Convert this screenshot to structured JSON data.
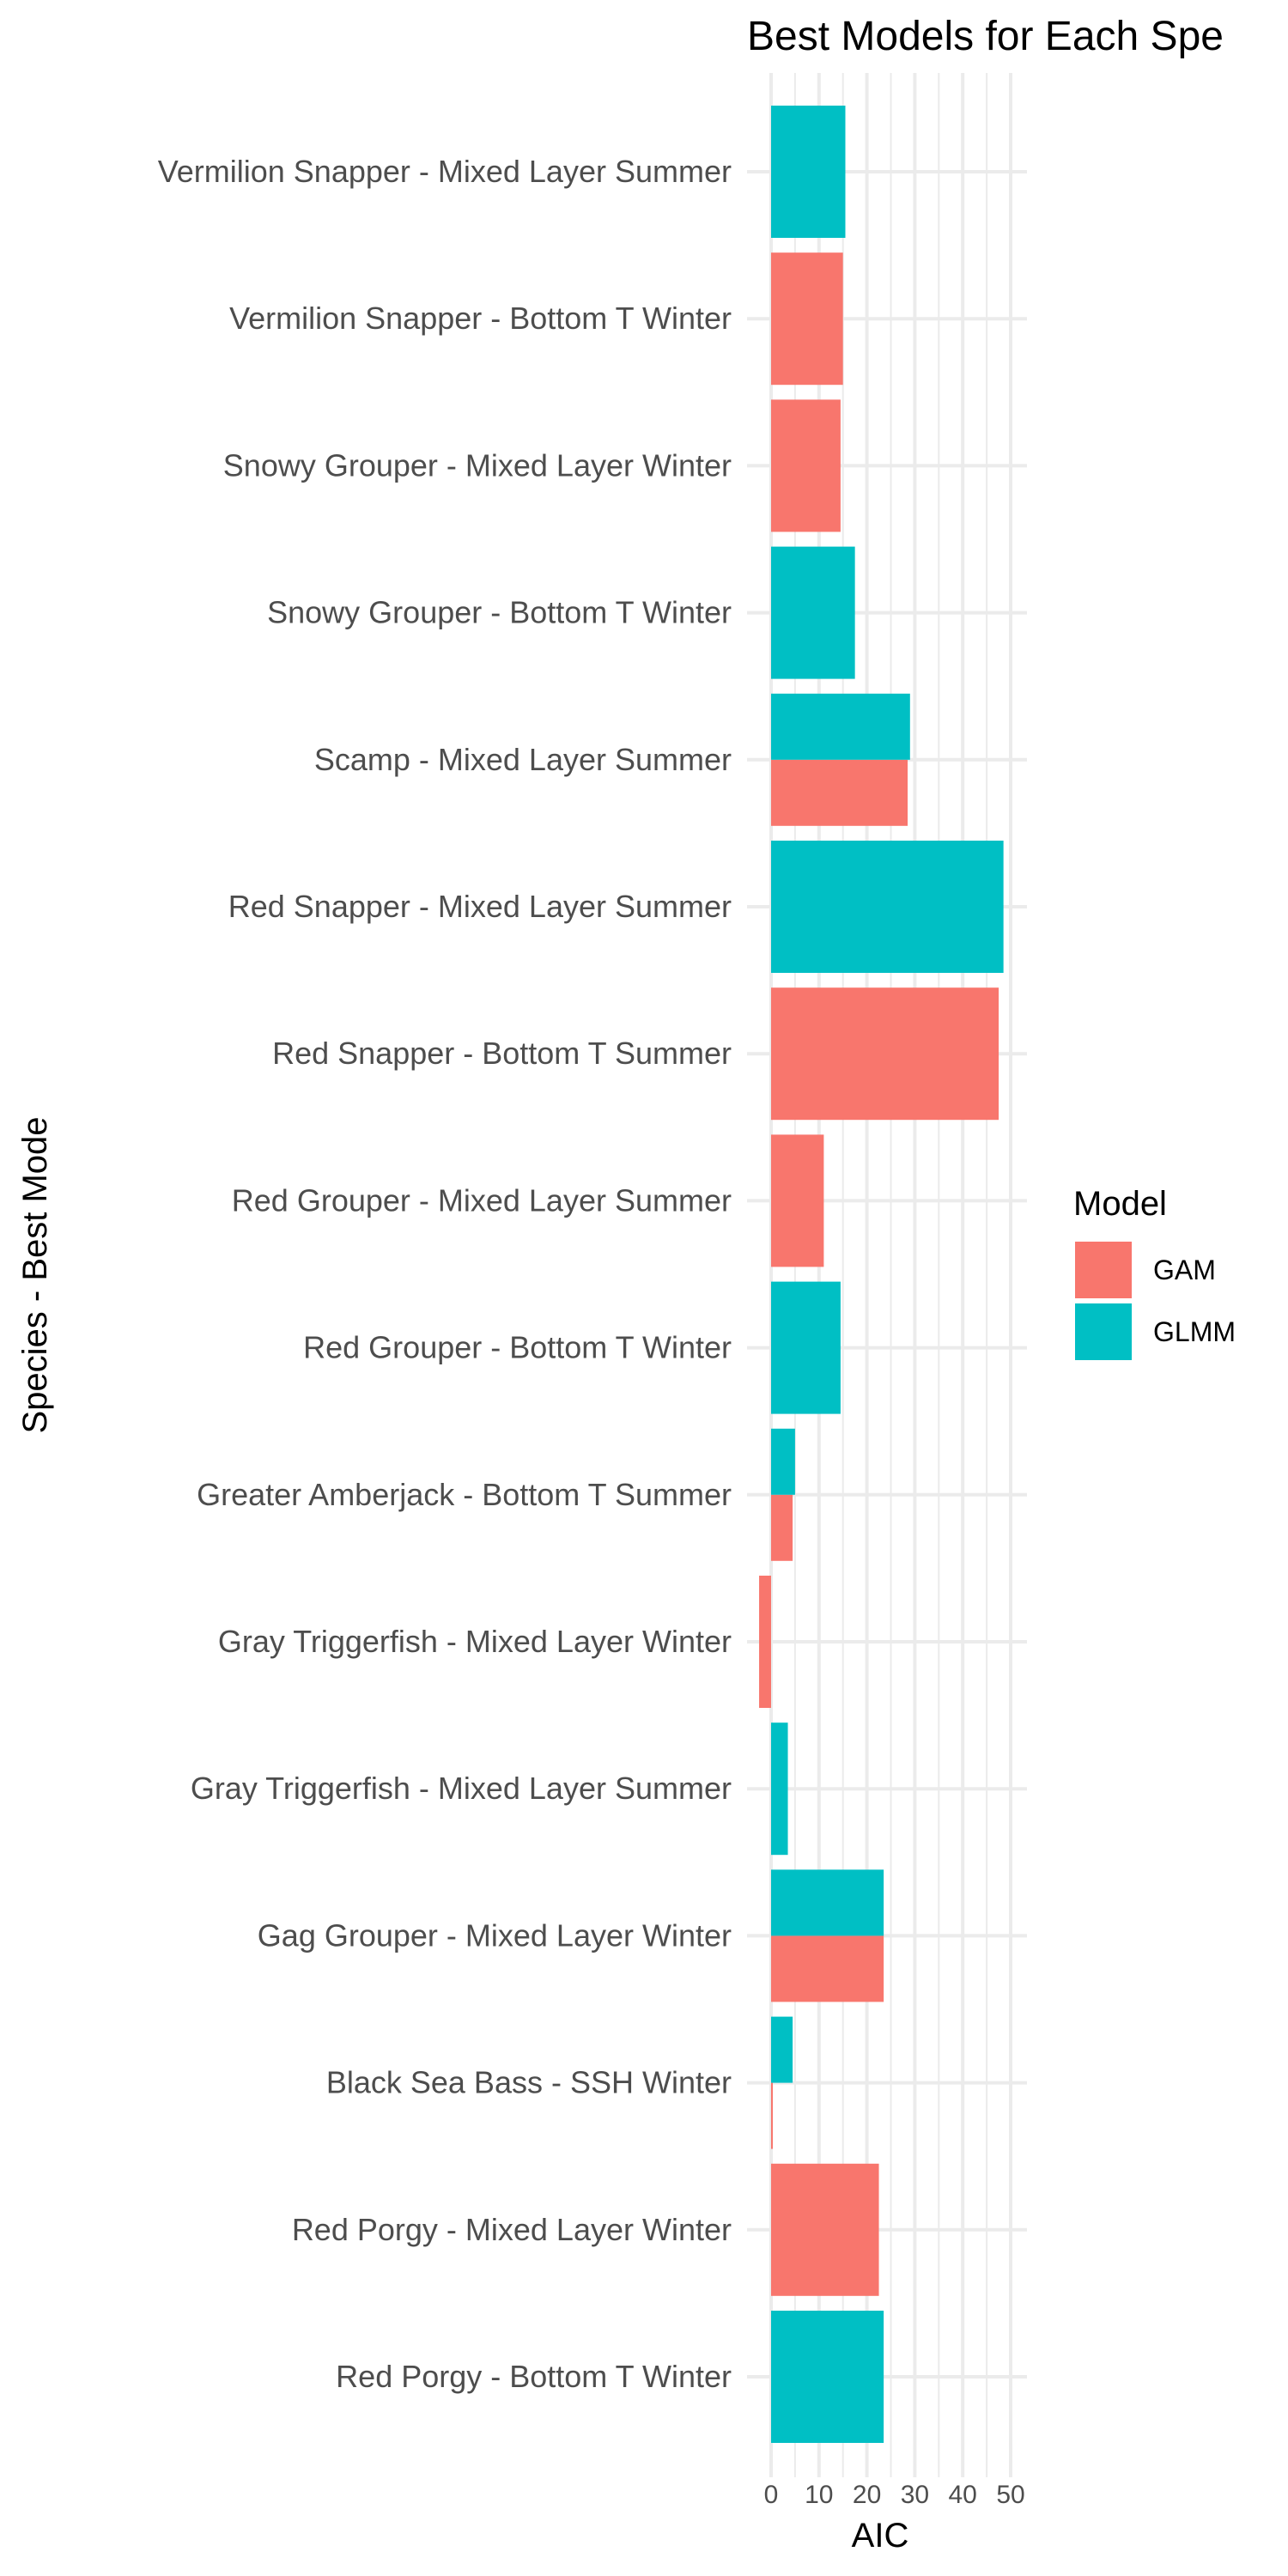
{
  "chart_data": {
    "type": "bar",
    "orientation": "horizontal",
    "position": "overlapping",
    "title": "Best Models for Each Spe",
    "xlabel": "AIC",
    "ylabel": "Species - Best Mode",
    "xlim": [
      -2.5,
      51.5
    ],
    "xticks": [
      0,
      10,
      20,
      30,
      40,
      50
    ],
    "grid": true,
    "legend": {
      "title": "Model",
      "position": "right",
      "entries": [
        {
          "name": "GAM",
          "color": "#F8766D"
        },
        {
          "name": "GLMM",
          "color": "#00BFC4"
        }
      ]
    },
    "categories": [
      "Vermilion Snapper - Mixed Layer Summer",
      "Vermilion Snapper - Bottom T Winter",
      "Snowy Grouper  - Mixed Layer Winter",
      "Snowy Grouper  - Bottom T Winter",
      "Scamp - Mixed Layer Summer",
      "Red Snapper - Mixed Layer Summer",
      "Red Snapper - Bottom T Summer",
      "Red Grouper - Mixed Layer Summer",
      "Red Grouper - Bottom T Winter",
      "Greater Amberjack - Bottom T Summer",
      "Gray Triggerfish - Mixed Layer Winter",
      "Gray Triggerfish - Mixed Layer Summer",
      "Gag Grouper - Mixed Layer Winter",
      "Black Sea Bass - SSH Winter",
      "Red Porgy - Mixed Layer Winter",
      "Red Porgy - Bottom T Winter"
    ],
    "series": [
      {
        "name": "GAM",
        "color": "#F8766D",
        "values": [
          null,
          15,
          14.5,
          null,
          28.5,
          null,
          47.5,
          11,
          null,
          4.5,
          -2.5,
          null,
          23.5,
          0.2,
          22.5,
          null
        ]
      },
      {
        "name": "GLMM",
        "color": "#00BFC4",
        "values": [
          15.5,
          null,
          null,
          17.5,
          29,
          48.5,
          null,
          null,
          14.5,
          5,
          null,
          3.5,
          23.5,
          4.5,
          null,
          23.5
        ]
      }
    ]
  }
}
